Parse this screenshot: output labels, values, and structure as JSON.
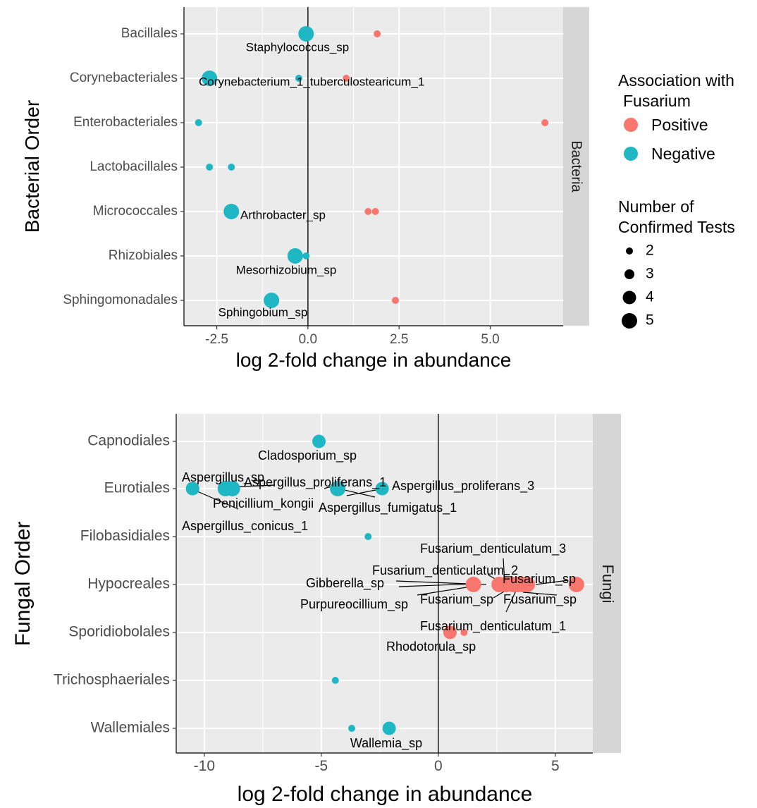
{
  "colors": {
    "positive": "#f8766d",
    "negative": "#1eb7c3",
    "panel_bg": "#ebebeb",
    "strip_bg": "#d6d6d6",
    "grid": "#ffffff",
    "axis_text": "#4d4d4d"
  },
  "legend": {
    "color_title_line1": "Association with",
    "color_title_line2": "Fusarium",
    "positive_label": "Positive",
    "negative_label": "Negative",
    "size_title_line1": "Number of",
    "size_title_line2": "Confirmed Tests",
    "size_items": [
      "2",
      "3",
      "4",
      "5"
    ]
  },
  "chart_data": [
    {
      "type": "scatter",
      "strip": "Bacteria",
      "xlabel": "log 2-fold change in abundance",
      "ylabel": "Bacterial Order",
      "xlim": [
        -3.4,
        7.0
      ],
      "xticks": [
        -2.5,
        0.0,
        2.5,
        5.0
      ],
      "xtick_labels": [
        "-2.5",
        "0.0",
        "2.5",
        "5.0"
      ],
      "categories": [
        "Bacillales",
        "Corynebacteriales",
        "Enterobacteriales",
        "Lactobacillales",
        "Micrococcales",
        "Rhizobiales",
        "Sphingomonadales"
      ],
      "points": [
        {
          "cat": "Bacillales",
          "x": -0.05,
          "size": 5,
          "assoc": "Negative",
          "label": "Staphylococcus_sp"
        },
        {
          "cat": "Bacillales",
          "x": 1.9,
          "size": 2,
          "assoc": "Positive"
        },
        {
          "cat": "Corynebacteriales",
          "x": -2.7,
          "size": 5,
          "assoc": "Negative"
        },
        {
          "cat": "Corynebacteriales",
          "x": -0.25,
          "size": 2,
          "assoc": "Negative"
        },
        {
          "cat": "Corynebacteriales",
          "x": 1.05,
          "size": 2,
          "assoc": "Positive",
          "label": "Corynebacterium_1_tuberculostearicum_1"
        },
        {
          "cat": "Enterobacteriales",
          "x": -3.0,
          "size": 2,
          "assoc": "Negative"
        },
        {
          "cat": "Enterobacteriales",
          "x": 6.5,
          "size": 2,
          "assoc": "Positive"
        },
        {
          "cat": "Lactobacillales",
          "x": -2.7,
          "size": 2,
          "assoc": "Negative"
        },
        {
          "cat": "Lactobacillales",
          "x": -2.1,
          "size": 2,
          "assoc": "Negative"
        },
        {
          "cat": "Micrococcales",
          "x": -2.1,
          "size": 5,
          "assoc": "Negative",
          "label": "Arthrobacter_sp"
        },
        {
          "cat": "Micrococcales",
          "x": 1.65,
          "size": 2,
          "assoc": "Positive"
        },
        {
          "cat": "Micrococcales",
          "x": 1.85,
          "size": 2,
          "assoc": "Positive"
        },
        {
          "cat": "Rhizobiales",
          "x": -0.35,
          "size": 5,
          "assoc": "Negative",
          "label": "Mesorhizobium_sp"
        },
        {
          "cat": "Rhizobiales",
          "x": -0.05,
          "size": 2,
          "assoc": "Negative"
        },
        {
          "cat": "Sphingomonadales",
          "x": -1.0,
          "size": 5,
          "assoc": "Negative",
          "label": "Sphingobium_sp"
        },
        {
          "cat": "Sphingomonadales",
          "x": 2.4,
          "size": 2,
          "assoc": "Positive"
        }
      ]
    },
    {
      "type": "scatter",
      "strip": "Fungi",
      "xlabel": "log 2-fold change in abundance",
      "ylabel": "Fungal Order",
      "xlim": [
        -11.2,
        6.6
      ],
      "xticks": [
        -10,
        -5,
        0,
        5
      ],
      "xtick_labels": [
        "-10",
        "-5",
        "0",
        "5"
      ],
      "categories": [
        "Capnodiales",
        "Eurotiales",
        "Filobasidiales",
        "Hypocreales",
        "Sporidiobolales",
        "Trichosphaeriales",
        "Wallemiales"
      ],
      "points": [
        {
          "cat": "Capnodiales",
          "x": -5.1,
          "size": 4,
          "assoc": "Negative",
          "label": "Cladosporium_sp"
        },
        {
          "cat": "Eurotiales",
          "x": -10.5,
          "size": 4,
          "assoc": "Negative",
          "label": "Aspergillus_sp"
        },
        {
          "cat": "Eurotiales",
          "x": -10.5,
          "size": 4,
          "assoc": "Negative",
          "label": "Aspergillus_conicus_1"
        },
        {
          "cat": "Eurotiales",
          "x": -9.1,
          "size": 5,
          "assoc": "Negative",
          "label": "Aspergillus_proliferans_1"
        },
        {
          "cat": "Eurotiales",
          "x": -8.8,
          "size": 5,
          "assoc": "Negative",
          "label": "Penicillium_kongii"
        },
        {
          "cat": "Eurotiales",
          "x": -4.3,
          "size": 5,
          "assoc": "Negative",
          "label": "Aspergillus_fumigatus_1"
        },
        {
          "cat": "Eurotiales",
          "x": -2.4,
          "size": 4,
          "assoc": "Negative",
          "label": "Aspergillus_proliferans_3"
        },
        {
          "cat": "Filobasidiales",
          "x": -3.0,
          "size": 2,
          "assoc": "Negative"
        },
        {
          "cat": "Hypocreales",
          "x": 1.5,
          "size": 5,
          "assoc": "Positive",
          "label": "Gibberella_sp"
        },
        {
          "cat": "Hypocreales",
          "x": 2.6,
          "size": 5,
          "assoc": "Positive",
          "label": "Purpureocillium_sp"
        },
        {
          "cat": "Hypocreales",
          "x": 2.9,
          "size": 5,
          "assoc": "Positive",
          "label": "Fusarium_sp"
        },
        {
          "cat": "Hypocreales",
          "x": 3.2,
          "size": 5,
          "assoc": "Positive",
          "label": "Fusarium_denticulatum_2"
        },
        {
          "cat": "Hypocreales",
          "x": 3.4,
          "size": 5,
          "assoc": "Positive",
          "label": "Fusarium_denticulatum_3"
        },
        {
          "cat": "Hypocreales",
          "x": 3.6,
          "size": 5,
          "assoc": "Positive",
          "label": "Fusarium_denticulatum_1"
        },
        {
          "cat": "Hypocreales",
          "x": 3.8,
          "size": 5,
          "assoc": "Positive",
          "label": "Fusarium_sp"
        },
        {
          "cat": "Hypocreales",
          "x": 5.9,
          "size": 5,
          "assoc": "Positive",
          "label": "Fusarium_sp"
        },
        {
          "cat": "Sporidiobolales",
          "x": 0.5,
          "size": 4,
          "assoc": "Positive",
          "label": "Rhodotorula_sp"
        },
        {
          "cat": "Sporidiobolales",
          "x": 1.1,
          "size": 2,
          "assoc": "Positive"
        },
        {
          "cat": "Trichosphaeriales",
          "x": -4.4,
          "size": 2,
          "assoc": "Negative"
        },
        {
          "cat": "Wallemiales",
          "x": -3.7,
          "size": 2,
          "assoc": "Negative"
        },
        {
          "cat": "Wallemiales",
          "x": -2.1,
          "size": 4,
          "assoc": "Negative",
          "label": "Wallemia_sp"
        }
      ]
    }
  ]
}
